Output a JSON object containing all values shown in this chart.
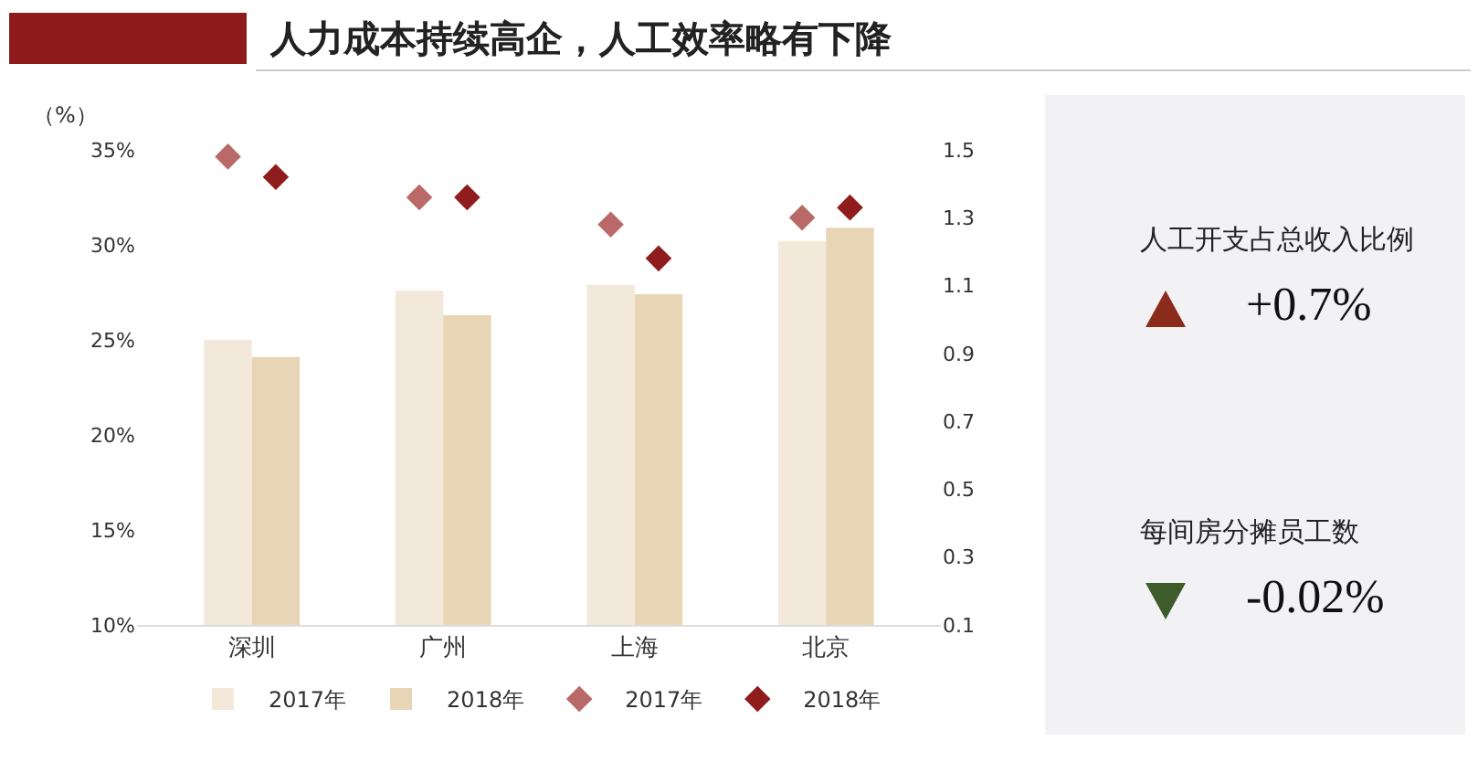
{
  "chart_data": [
    {
      "type": "bar",
      "title": "人力成本持续高企，人工效率略有下降",
      "ylabel": "（%）",
      "categories": [
        "深圳",
        "广州",
        "上海",
        "北京"
      ],
      "series": [
        {
          "name": "2017年",
          "color": "#f3e9da",
          "values": [
            25.0,
            27.6,
            27.9,
            30.2
          ]
        },
        {
          "name": "2018年",
          "color": "#e8d5b5",
          "values": [
            24.1,
            26.3,
            27.4,
            30.9
          ]
        },
        {
          "name": "2017年",
          "type": "scatter",
          "axis": "y2",
          "marker": "diamond",
          "color": "#b96a68",
          "values": [
            1.48,
            1.36,
            1.28,
            1.3
          ]
        },
        {
          "name": "2018年",
          "type": "scatter",
          "axis": "y2",
          "marker": "diamond",
          "color": "#8f1d1d",
          "values": [
            1.42,
            1.36,
            1.18,
            1.33
          ]
        }
      ],
      "ylim": [
        10,
        35
      ],
      "yticks": [
        {
          "value": 10,
          "label": "10%"
        },
        {
          "value": 15,
          "label": "15%"
        },
        {
          "value": 20,
          "label": "20%"
        },
        {
          "value": 25,
          "label": "25%"
        },
        {
          "value": 30,
          "label": "30%"
        },
        {
          "value": 35,
          "label": "35%"
        }
      ],
      "y2lim": [
        0.1,
        1.5
      ],
      "y2ticks": [
        0.1,
        0.3,
        0.5,
        0.7,
        0.9,
        1.1,
        1.3,
        1.5
      ],
      "grid": false,
      "legend": "bottom"
    },
    {
      "type": "other",
      "annotations": [
        "人工开支占总收入比例",
        "+0.7%",
        "每间房分摊员工数",
        "-0.02%"
      ]
    }
  ]
}
